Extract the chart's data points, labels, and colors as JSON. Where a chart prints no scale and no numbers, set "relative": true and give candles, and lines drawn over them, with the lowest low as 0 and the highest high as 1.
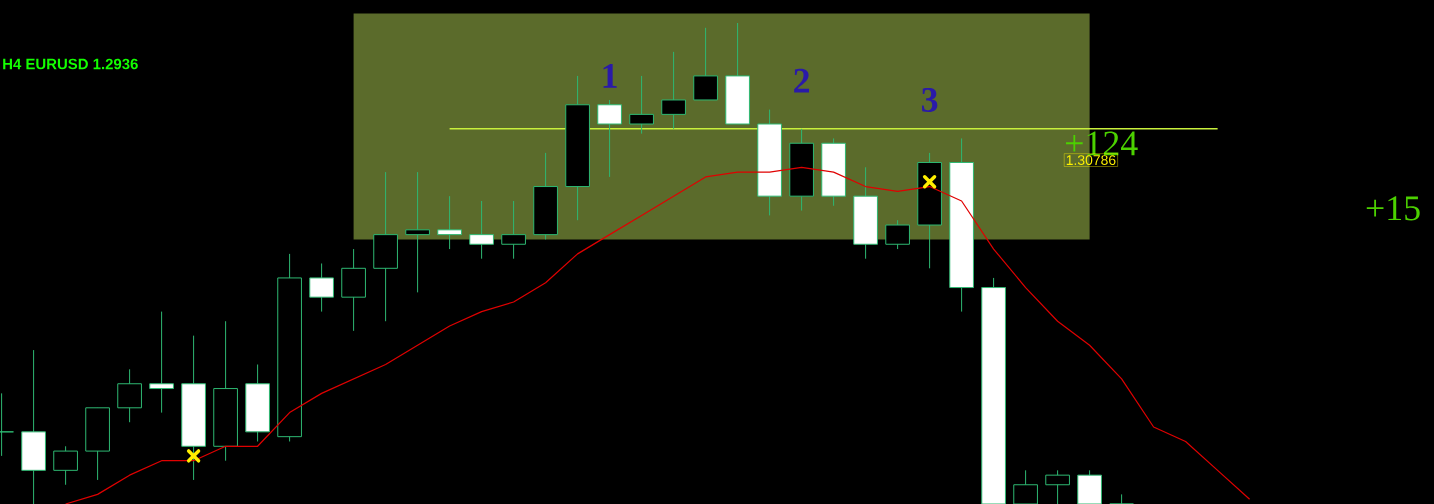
{
  "chart_data": {
    "type": "candlestick",
    "title": "H4 EURUSD 1.2936",
    "relative": true,
    "categories": [
      null,
      null,
      null,
      null,
      null,
      null,
      null,
      null,
      null,
      null,
      null,
      null,
      null,
      null,
      null,
      null,
      null,
      null,
      null,
      null,
      null,
      null,
      null,
      null,
      null,
      null,
      null,
      null,
      null,
      null,
      null,
      null,
      null,
      null,
      null,
      null,
      null,
      null,
      null,
      null
    ],
    "color": "#2eb872",
    "ohlc": [
      [
        0.15,
        0.23,
        0.1,
        0.15
      ],
      [
        0.15,
        0.32,
        0,
        0.07
      ],
      [
        0.07,
        0.12,
        0.04,
        0.11
      ],
      [
        0.11,
        0.2,
        0.05,
        0.2
      ],
      [
        0.2,
        0.28,
        0.17,
        0.25
      ],
      [
        0.25,
        0.4,
        0.19,
        0.24
      ],
      [
        0.25,
        0.35,
        0.05,
        0.12
      ],
      [
        0.12,
        0.38,
        0.09,
        0.24
      ],
      [
        0.25,
        0.29,
        0.13,
        0.15
      ],
      [
        0.14,
        0.52,
        0.13,
        0.47
      ],
      [
        0.47,
        0.5,
        0.4,
        0.43
      ],
      [
        0.43,
        0.53,
        0.36,
        0.49
      ],
      [
        0.49,
        0.69,
        0.38,
        0.56
      ],
      [
        0.56,
        0.69,
        0.44,
        0.57
      ],
      [
        0.57,
        0.64,
        0.53,
        0.56
      ],
      [
        0.56,
        0.63,
        0.51,
        0.54
      ],
      [
        0.54,
        0.63,
        0.51,
        0.56
      ],
      [
        0.56,
        0.73,
        0.55,
        0.66
      ],
      [
        0.66,
        0.89,
        0.59,
        0.83
      ],
      [
        0.83,
        0.84,
        0.68,
        0.79
      ],
      [
        0.79,
        0.89,
        0.77,
        0.81
      ],
      [
        0.81,
        0.94,
        0.78,
        0.84
      ],
      [
        0.84,
        0.99,
        0.84,
        0.89
      ],
      [
        0.89,
        1.0,
        0.79,
        0.79
      ],
      [
        0.79,
        0.82,
        0.6,
        0.64
      ],
      [
        0.64,
        0.78,
        0.61,
        0.75
      ],
      [
        0.75,
        0.76,
        0.62,
        0.64
      ],
      [
        0.64,
        0.7,
        0.51,
        0.54
      ],
      [
        0.54,
        0.59,
        0.53,
        0.58
      ],
      [
        0.58,
        0.73,
        0.49,
        0.71
      ],
      [
        0.71,
        0.76,
        0.4,
        0.45
      ],
      [
        0.45,
        0.47,
        0,
        0
      ],
      [
        0,
        0.07,
        0,
        0.04
      ],
      [
        0.04,
        0.07,
        0,
        0.06
      ],
      [
        0.06,
        0.07,
        0,
        0
      ],
      [
        0,
        0.02,
        0,
        0
      ],
      null,
      null,
      null,
      null
    ],
    "series": [
      {
        "type": "line",
        "color": "#e00000",
        "values": [
          null,
          null,
          0.0,
          0.02,
          0.06,
          0.09,
          0.09,
          0.12,
          0.12,
          0.19,
          0.23,
          0.26,
          0.29,
          0.33,
          0.37,
          0.4,
          0.42,
          0.46,
          0.52,
          0.56,
          0.6,
          0.64,
          0.68,
          0.69,
          0.69,
          0.7,
          0.69,
          0.66,
          0.65,
          0.66,
          0.63,
          0.53,
          0.45,
          0.38,
          0.33,
          0.26,
          0.16,
          0.13,
          0.07,
          0.01
        ]
      },
      {
        "type": "scatter",
        "color": "#ffee00",
        "marker": "cross",
        "values": [
          null,
          null,
          null,
          null,
          null,
          null,
          0.1,
          null,
          null,
          null,
          null,
          null,
          null,
          null,
          null,
          null,
          null,
          null,
          null,
          null,
          null,
          null,
          null,
          null,
          null,
          null,
          null,
          null,
          null,
          0.67,
          null,
          null,
          null,
          null,
          null,
          null,
          null,
          null,
          null,
          null
        ]
      }
    ],
    "ref_lines": [
      {
        "axis": "y",
        "value": 0.78,
        "color": "#c8f03c"
      }
    ],
    "bands": [
      {
        "axis": "y",
        "from": 0.55,
        "to": 1.02,
        "color": "#5b6b2b"
      }
    ],
    "annotations": [
      "1",
      "2",
      "3",
      "+124",
      "1.30786",
      "+15"
    ]
  }
}
